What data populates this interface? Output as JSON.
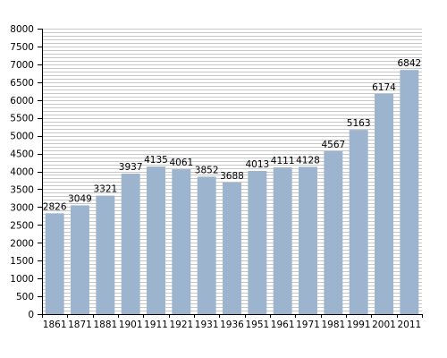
{
  "chart_data": {
    "type": "bar",
    "title": "",
    "xlabel": "",
    "ylabel": "",
    "categories": [
      "1861",
      "1871",
      "1881",
      "1901",
      "1911",
      "1921",
      "1931",
      "1936",
      "1951",
      "1961",
      "1971",
      "1981",
      "1991",
      "2001",
      "2011"
    ],
    "values": [
      2826,
      3049,
      3321,
      3937,
      4135,
      4061,
      3852,
      3688,
      4013,
      4111,
      4128,
      4567,
      5163,
      6174,
      6842
    ],
    "value_labels": [
      "2826",
      "3049",
      "3321",
      "3937",
      "4135",
      "4061",
      "3852",
      "3688",
      "4013",
      "4111",
      "4128",
      "4567",
      "5163",
      "6174",
      "6842"
    ],
    "ylim": [
      0,
      8000
    ],
    "yticks": [
      0,
      500,
      1000,
      1500,
      2000,
      2500,
      3000,
      3500,
      4000,
      4500,
      5000,
      5500,
      6000,
      6500,
      7000,
      7500,
      8000
    ],
    "ytick_labels": [
      "0",
      "500",
      "1000",
      "1500",
      "2000",
      "2500",
      "3000",
      "3500",
      "4000",
      "4500",
      "5000",
      "5500",
      "6000",
      "6500",
      "7000",
      "7500",
      "8000"
    ],
    "grid": true,
    "legend": "none",
    "bar_color": "#9db4cf",
    "grid_color": "#c8c8c8"
  }
}
